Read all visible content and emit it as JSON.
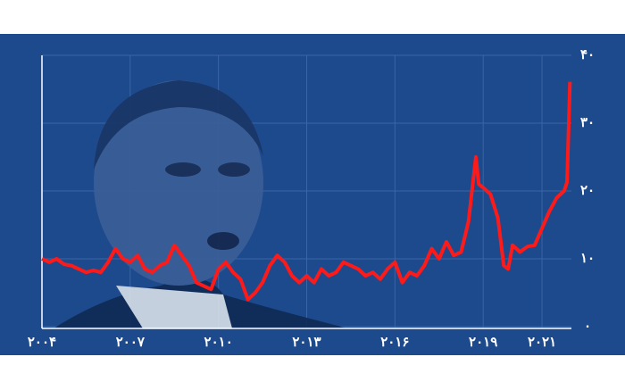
{
  "chart_data": {
    "type": "line",
    "x": [
      2004.0,
      2004.25,
      2004.5,
      2004.75,
      2005.0,
      2005.25,
      2005.5,
      2005.75,
      2006.0,
      2006.25,
      2006.5,
      2006.75,
      2007.0,
      2007.25,
      2007.5,
      2007.75,
      2008.0,
      2008.25,
      2008.5,
      2008.75,
      2009.0,
      2009.25,
      2009.5,
      2009.75,
      2010.0,
      2010.25,
      2010.5,
      2010.75,
      2011.0,
      2011.25,
      2011.5,
      2011.75,
      2012.0,
      2012.25,
      2012.5,
      2012.75,
      2013.0,
      2013.25,
      2013.5,
      2013.75,
      2014.0,
      2014.25,
      2014.5,
      2014.75,
      2015.0,
      2015.25,
      2015.5,
      2015.75,
      2016.0,
      2016.25,
      2016.5,
      2016.75,
      2017.0,
      2017.25,
      2017.5,
      2017.75,
      2018.0,
      2018.25,
      2018.5,
      2018.75,
      2018.85,
      2019.0,
      2019.25,
      2019.5,
      2019.7,
      2019.85,
      2020.0,
      2020.25,
      2020.5,
      2020.75,
      2021.0,
      2021.25,
      2021.5,
      2021.75,
      2021.85,
      2021.95
    ],
    "series": [
      {
        "color": "#ff1a1a",
        "values": [
          10,
          9.5,
          10,
          9.2,
          9,
          8.5,
          8,
          8.3,
          8,
          9.5,
          11.5,
          10,
          9.5,
          10.5,
          8.5,
          8,
          9,
          9.5,
          12,
          10.5,
          9,
          6.5,
          6,
          5.5,
          8.5,
          9.5,
          8,
          7,
          4,
          5,
          6.5,
          9,
          10.5,
          9.5,
          7.5,
          6.5,
          7.5,
          6.5,
          8.5,
          7.5,
          8,
          9.5,
          9,
          8.5,
          7.5,
          8,
          7,
          8.5,
          9.5,
          6.5,
          8,
          7.5,
          9,
          11.5,
          10,
          12.5,
          10.5,
          11,
          15.5,
          25,
          21,
          20.5,
          19.5,
          16,
          9,
          8.5,
          12,
          11,
          11.8,
          12,
          14.5,
          17,
          19,
          20,
          21.3,
          36.1
        ]
      }
    ],
    "xlim": [
      2004,
      2022
    ],
    "xticks": [
      {
        "value": 2004,
        "label": "۲۰۰۴"
      },
      {
        "value": 2007,
        "label": "۲۰۰۷"
      },
      {
        "value": 2010,
        "label": "۲۰۱۰"
      },
      {
        "value": 2013,
        "label": "۲۰۱۳"
      },
      {
        "value": 2016,
        "label": "۲۰۱۶"
      },
      {
        "value": 2019,
        "label": "۲۰۱۹"
      },
      {
        "value": 2021,
        "label": "۲۰۲۱"
      }
    ],
    "ylim": [
      0,
      40
    ],
    "yticks": [
      {
        "value": 0,
        "label": "۰"
      },
      {
        "value": 10,
        "label": "۱۰"
      },
      {
        "value": 20,
        "label": "۲۰"
      },
      {
        "value": 30,
        "label": "۳۰"
      },
      {
        "value": 40,
        "label": "۴۰"
      }
    ],
    "grid": true
  }
}
